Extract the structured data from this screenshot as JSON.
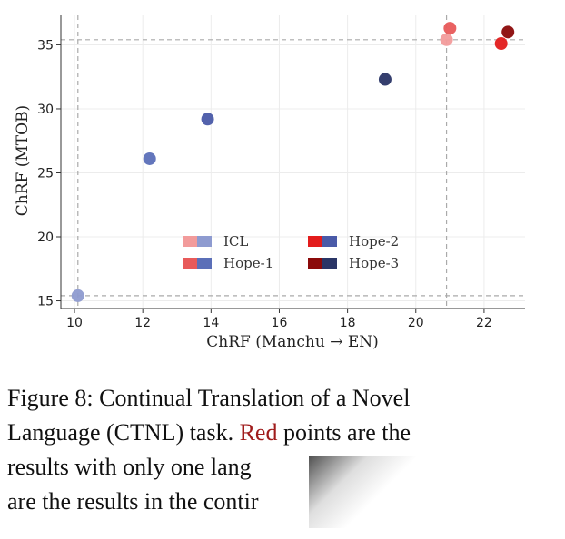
{
  "chart_data": {
    "type": "scatter",
    "xlabel": "ChRF (Manchu → EN)",
    "ylabel": "ChRF (MTOB)",
    "xlim": [
      9.6,
      23.2
    ],
    "ylim": [
      14.4,
      37.3
    ],
    "xticks": [
      10,
      12,
      14,
      16,
      18,
      20,
      22
    ],
    "yticks": [
      15,
      20,
      25,
      30,
      35
    ],
    "grid": true,
    "reference_lines": {
      "x": [
        10.1,
        20.9
      ],
      "y": [
        15.4,
        35.4
      ]
    },
    "legend_position": "lower-center",
    "series": [
      {
        "name": "ICL",
        "colors": [
          "#f29b9b",
          "#8e9bd0"
        ],
        "points": [
          {
            "x": 10.1,
            "y": 15.4,
            "color": "#8e9bd0"
          },
          {
            "x": 20.9,
            "y": 35.4,
            "color": "#f29b9b"
          }
        ]
      },
      {
        "name": "Hope-1",
        "colors": [
          "#e85a5a",
          "#5b6fb8"
        ],
        "points": [
          {
            "x": 12.2,
            "y": 26.1,
            "color": "#5b6fb8"
          },
          {
            "x": 21.0,
            "y": 36.3,
            "color": "#e85a5a"
          }
        ]
      },
      {
        "name": "Hope-2",
        "colors": [
          "#e31c1c",
          "#4a5aa8"
        ],
        "points": [
          {
            "x": 13.9,
            "y": 29.2,
            "color": "#4a5aa8"
          },
          {
            "x": 22.5,
            "y": 35.1,
            "color": "#e31c1c"
          }
        ]
      },
      {
        "name": "Hope-3",
        "colors": [
          "#8b0a0a",
          "#2a3566"
        ],
        "points": [
          {
            "x": 19.1,
            "y": 32.3,
            "color": "#2a3566"
          },
          {
            "x": 22.7,
            "y": 36.0,
            "color": "#8b0a0a"
          }
        ]
      }
    ]
  },
  "caption": {
    "line1": "Figure 8: Continual Translation of a Novel",
    "line2_before": "Language (CTNL) task. ",
    "line2_red": "Red",
    "line2_after": " points are the",
    "line3": "results with only one lang",
    "line4": "are the results in the contir"
  }
}
